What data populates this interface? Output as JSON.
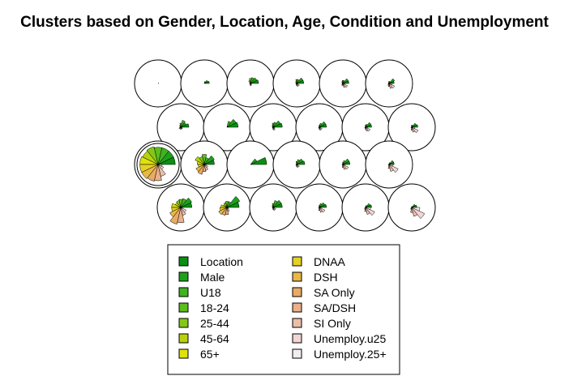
{
  "chart_data": {
    "type": "som-codes",
    "title": "Clusters based on Gender, Location, Age, Condition and Unemployment",
    "grid": {
      "rows": 4,
      "cols": 6,
      "topology": "hexagonal"
    },
    "variables": [
      "Location",
      "Male",
      "U18",
      "18-24",
      "25-44",
      "45-64",
      "65+",
      "DNAA",
      "DSH",
      "SA Only",
      "SA/DSH",
      "SI Only",
      "Unemploy.u25",
      "Unemploy.25+"
    ],
    "colors": [
      "#0a8f12",
      "#1fa01c",
      "#40b21f",
      "#5cbd1f",
      "#83c717",
      "#b7d20d",
      "#dfe20c",
      "#e6d023",
      "#e8b845",
      "#e8ab65",
      "#eab08b",
      "#ecbeaa",
      "#f3d5d5",
      "#f3eeee"
    ],
    "legend": {
      "col1": [
        "Location",
        "Male",
        "U18",
        "18-24",
        "25-44",
        "45-64",
        "65+"
      ],
      "col2": [
        "DNAA",
        "DSH",
        "SA Only",
        "SA/DSH",
        "SI Only",
        "Unemploy.u25",
        "Unemploy.25+"
      ]
    },
    "units": [
      {
        "row": 0,
        "col": 0,
        "values": [
          0.03,
          0.03,
          0,
          0,
          0,
          0,
          0,
          0,
          0,
          0,
          0,
          0,
          0,
          0
        ]
      },
      {
        "row": 0,
        "col": 1,
        "values": [
          0.25,
          0.2,
          0.1,
          0,
          0,
          0,
          0,
          0,
          0,
          0,
          0,
          0,
          0,
          0
        ]
      },
      {
        "row": 0,
        "col": 2,
        "values": [
          0.4,
          0.35,
          0.3,
          0.25,
          0.15,
          0.05,
          0,
          0,
          0.05,
          0.05,
          0.1,
          0.1,
          0.05,
          0
        ]
      },
      {
        "row": 0,
        "col": 3,
        "values": [
          0.35,
          0.35,
          0.2,
          0.2,
          0.1,
          0.05,
          0,
          0,
          0.05,
          0.05,
          0.1,
          0.15,
          0.15,
          0.05
        ]
      },
      {
        "row": 0,
        "col": 4,
        "values": [
          0.3,
          0.3,
          0.15,
          0.15,
          0.1,
          0.05,
          0,
          0,
          0.05,
          0.1,
          0.1,
          0.2,
          0.25,
          0.1
        ]
      },
      {
        "row": 0,
        "col": 5,
        "values": [
          0.25,
          0.3,
          0.1,
          0.1,
          0.05,
          0.05,
          0,
          0,
          0.05,
          0.1,
          0.15,
          0.25,
          0.3,
          0.15
        ]
      },
      {
        "row": 1,
        "col": 0,
        "values": [
          0.4,
          0.3,
          0.35,
          0.2,
          0.1,
          0.05,
          0,
          0.05,
          0.1,
          0.05,
          0.1,
          0.1,
          0.1,
          0.05
        ]
      },
      {
        "row": 1,
        "col": 1,
        "values": [
          0.55,
          0.5,
          0.3,
          0,
          0,
          0,
          0,
          0,
          0,
          0,
          0,
          0,
          0,
          0
        ]
      },
      {
        "row": 1,
        "col": 2,
        "values": [
          0.45,
          0.4,
          0.25,
          0.2,
          0.1,
          0.05,
          0,
          0,
          0.05,
          0.05,
          0.1,
          0.15,
          0.1,
          0.05
        ]
      },
      {
        "row": 1,
        "col": 3,
        "values": [
          0.35,
          0.35,
          0.2,
          0.1,
          0.05,
          0,
          0,
          0,
          0.05,
          0.05,
          0.1,
          0.15,
          0.15,
          0.05
        ]
      },
      {
        "row": 1,
        "col": 4,
        "values": [
          0.3,
          0.3,
          0.15,
          0.1,
          0.05,
          0,
          0,
          0,
          0.05,
          0.05,
          0.1,
          0.2,
          0.25,
          0.1
        ]
      },
      {
        "row": 1,
        "col": 5,
        "values": [
          0.3,
          0.25,
          0.1,
          0.1,
          0.05,
          0,
          0,
          0,
          0.05,
          0.05,
          0.15,
          0.25,
          0.35,
          0.15
        ]
      },
      {
        "row": 2,
        "col": 0,
        "values": [
          0.85,
          0.85,
          0.85,
          0.85,
          0.9,
          0.85,
          0.9,
          0.9,
          0.9,
          0.85,
          0.8,
          0.6,
          0.3,
          0.2
        ]
      },
      {
        "row": 2,
        "col": 1,
        "values": [
          0.5,
          0.55,
          0.35,
          0.5,
          0.4,
          0.5,
          0.35,
          0.3,
          0.45,
          0.5,
          0.35,
          0.3,
          0.2,
          0.1
        ]
      },
      {
        "row": 2,
        "col": 2,
        "values": [
          0.8,
          0.35,
          0,
          0,
          0,
          0,
          0,
          0,
          0,
          0,
          0,
          0,
          0,
          0
        ]
      },
      {
        "row": 2,
        "col": 3,
        "values": [
          0.4,
          0.35,
          0.25,
          0.15,
          0.05,
          0,
          0,
          0,
          0.05,
          0.05,
          0.1,
          0.15,
          0.15,
          0.05
        ]
      },
      {
        "row": 2,
        "col": 4,
        "values": [
          0.35,
          0.35,
          0.2,
          0.1,
          0.05,
          0,
          0,
          0,
          0.05,
          0.05,
          0.15,
          0.25,
          0.3,
          0.1
        ]
      },
      {
        "row": 2,
        "col": 5,
        "values": [
          0.25,
          0.25,
          0.1,
          0.05,
          0,
          0,
          0,
          0,
          0.05,
          0.05,
          0.2,
          0.35,
          0.5,
          0.2
        ]
      },
      {
        "row": 3,
        "col": 0,
        "values": [
          0.55,
          0.6,
          0.45,
          0.4,
          0.35,
          0.3,
          0.45,
          0.45,
          0.6,
          0.85,
          0.75,
          0.4,
          0.3,
          0.1
        ]
      },
      {
        "row": 3,
        "col": 1,
        "values": [
          0.6,
          0.7,
          0.3,
          0.3,
          0.25,
          0.2,
          0.3,
          0.35,
          0.45,
          0.4,
          0.35,
          0.2,
          0.1,
          0.05
        ]
      },
      {
        "row": 3,
        "col": 2,
        "values": [
          0.45,
          0.45,
          0.35,
          0.2,
          0.1,
          0.05,
          0,
          0,
          0.05,
          0.05,
          0.1,
          0.15,
          0.15,
          0.05
        ]
      },
      {
        "row": 3,
        "col": 3,
        "values": [
          0.35,
          0.3,
          0.2,
          0.1,
          0.05,
          0,
          0,
          0,
          0.05,
          0.05,
          0.15,
          0.25,
          0.3,
          0.1
        ]
      },
      {
        "row": 3,
        "col": 4,
        "values": [
          0.3,
          0.25,
          0.1,
          0.05,
          0,
          0,
          0,
          0,
          0.05,
          0.1,
          0.2,
          0.35,
          0.5,
          0.25
        ]
      },
      {
        "row": 3,
        "col": 5,
        "values": [
          0.25,
          0.2,
          0.05,
          0.05,
          0,
          0,
          0,
          0,
          0.05,
          0.1,
          0.25,
          0.45,
          0.7,
          0.4
        ]
      }
    ]
  }
}
